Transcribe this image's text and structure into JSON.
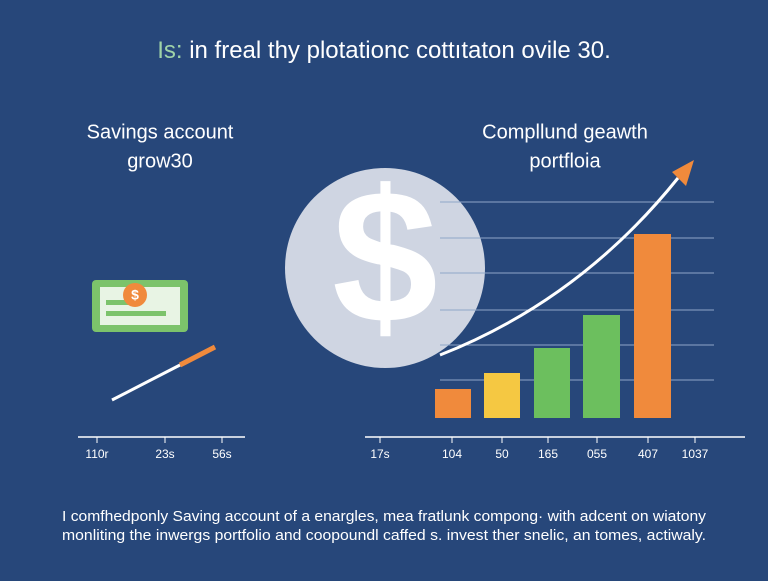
{
  "header": {
    "prefix": "Is:",
    "title": "in freal thy plotationc cottıtaton ovile 30."
  },
  "left_panel": {
    "title_lines": [
      "Savings account",
      "grow30"
    ],
    "axis_labels": [
      "110r",
      "23s",
      "56s"
    ]
  },
  "right_panel": {
    "title_lines": [
      "Compllund geawth",
      "portfloia"
    ],
    "axis_labels": [
      "17s",
      "104",
      "50",
      "165",
      "055",
      "407",
      "1037"
    ]
  },
  "footer": {
    "lines": [
      "I comfhedponly Saving account of a enargles, mea fratlunk compong· with adcent on wiatony",
      "monliting the inwergs portfolio and coopoundl caffed s. invest ther snelic, an tomes, actiwaly."
    ]
  }
}
